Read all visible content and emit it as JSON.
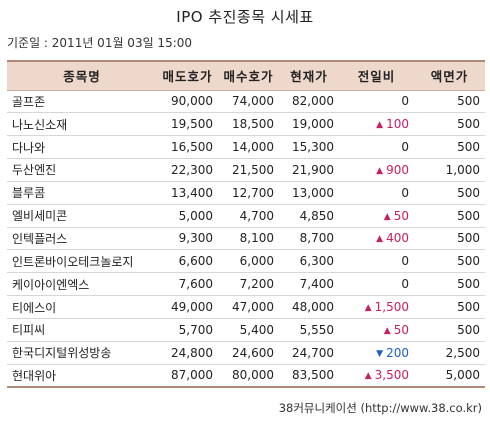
{
  "title": "IPO 추진종목 시세표",
  "basis": "기준일 : 2011년 01월 03일 15:00",
  "colors": {
    "header_bg": "#eed8cc",
    "up": "#c81e64",
    "down": "#1f5fc4"
  },
  "columns": [
    "종목명",
    "매도호가",
    "매수호가",
    "현재가",
    "전일비",
    "액면가"
  ],
  "rows": [
    {
      "name": "골프존",
      "ask": "90,000",
      "bid": "74,000",
      "price": "82,000",
      "dir": "",
      "change": "0",
      "par": "500"
    },
    {
      "name": "나노신소재",
      "ask": "19,500",
      "bid": "18,500",
      "price": "19,000",
      "dir": "up",
      "change": "100",
      "par": "500"
    },
    {
      "name": "다나와",
      "ask": "16,500",
      "bid": "14,000",
      "price": "15,300",
      "dir": "",
      "change": "0",
      "par": "500"
    },
    {
      "name": "두산엔진",
      "ask": "22,300",
      "bid": "21,500",
      "price": "21,900",
      "dir": "up",
      "change": "900",
      "par": "1,000"
    },
    {
      "name": "블루콤",
      "ask": "13,400",
      "bid": "12,700",
      "price": "13,000",
      "dir": "",
      "change": "0",
      "par": "500"
    },
    {
      "name": "엘비세미콘",
      "ask": "5,000",
      "bid": "4,700",
      "price": "4,850",
      "dir": "up",
      "change": "50",
      "par": "500"
    },
    {
      "name": "인텍플러스",
      "ask": "9,300",
      "bid": "8,100",
      "price": "8,700",
      "dir": "up",
      "change": "400",
      "par": "500"
    },
    {
      "name": "인트론바이오테크놀로지",
      "ask": "6,600",
      "bid": "6,000",
      "price": "6,300",
      "dir": "",
      "change": "0",
      "par": "500"
    },
    {
      "name": "케이아이엔엑스",
      "ask": "7,600",
      "bid": "7,200",
      "price": "7,400",
      "dir": "",
      "change": "0",
      "par": "500"
    },
    {
      "name": "티에스이",
      "ask": "49,000",
      "bid": "47,000",
      "price": "48,000",
      "dir": "up",
      "change": "1,500",
      "par": "500"
    },
    {
      "name": "티피씨",
      "ask": "5,700",
      "bid": "5,400",
      "price": "5,550",
      "dir": "up",
      "change": "50",
      "par": "500"
    },
    {
      "name": "한국디지털위성방송",
      "ask": "24,800",
      "bid": "24,600",
      "price": "24,700",
      "dir": "down",
      "change": "200",
      "par": "2,500"
    },
    {
      "name": "현대위아",
      "ask": "87,000",
      "bid": "80,000",
      "price": "83,500",
      "dir": "up",
      "change": "3,500",
      "par": "5,000"
    }
  ],
  "source": "38커뮤니케이션 (http://www.38.co.kr)"
}
